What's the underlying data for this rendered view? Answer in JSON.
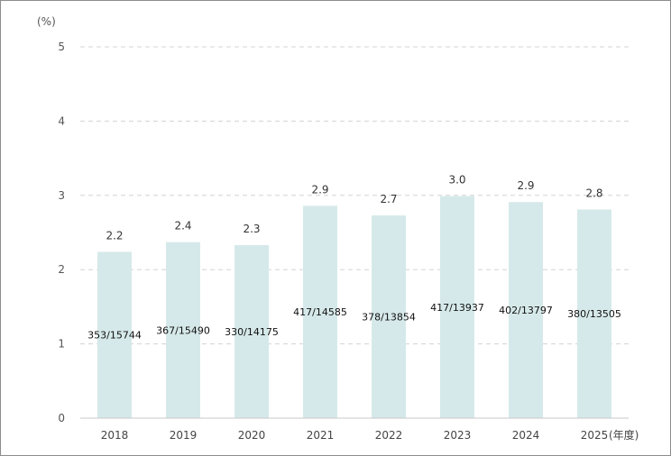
{
  "chart_data": {
    "type": "bar",
    "y_unit_label": "(%)",
    "x_unit_suffix": "(年度)",
    "categories": [
      "2018",
      "2019",
      "2020",
      "2021",
      "2022",
      "2023",
      "2024",
      "2025"
    ],
    "values": [
      2.24,
      2.37,
      2.33,
      2.86,
      2.73,
      2.99,
      2.91,
      2.81
    ],
    "value_labels": [
      "2.2",
      "2.4",
      "2.3",
      "2.9",
      "2.7",
      "3.0",
      "2.9",
      "2.8"
    ],
    "ratio_labels": [
      "353/15744",
      "367/15490",
      "330/14175",
      "417/14585",
      "378/13854",
      "417/13937",
      "402/13797",
      "380/13505"
    ],
    "ylim": [
      0,
      5
    ],
    "yticks": [
      "0",
      "1",
      "2",
      "3",
      "4",
      "5"
    ],
    "grid": true,
    "bar_color": "#d6e9ea",
    "grid_color": "#d4d4d4"
  }
}
